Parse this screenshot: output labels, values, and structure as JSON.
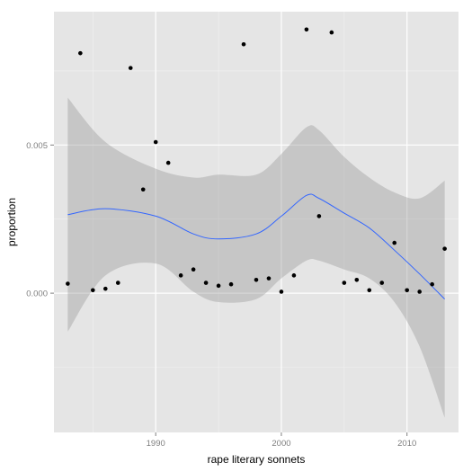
{
  "chart_data": {
    "type": "scatter",
    "title": "",
    "xlabel": "rape literary sonnets",
    "ylabel": "proportion",
    "xlim": [
      1981.9,
      2014.1
    ],
    "ylim": [
      -0.0047,
      0.0095
    ],
    "x_ticks": [
      1990,
      2000,
      2010
    ],
    "x_tick_labels": [
      "1990",
      "2000",
      "2010"
    ],
    "y_ticks": [
      0.0,
      0.005
    ],
    "y_tick_labels": [
      "0.000",
      "0.005"
    ],
    "grid": true,
    "legend": "none",
    "points": [
      {
        "x": 1983,
        "y": 0.00032
      },
      {
        "x": 1984,
        "y": 0.0081
      },
      {
        "x": 1985,
        "y": 0.0001
      },
      {
        "x": 1986,
        "y": 0.00015
      },
      {
        "x": 1987,
        "y": 0.00035
      },
      {
        "x": 1988,
        "y": 0.0076
      },
      {
        "x": 1989,
        "y": 0.0035
      },
      {
        "x": 1990,
        "y": 0.0051
      },
      {
        "x": 1991,
        "y": 0.0044
      },
      {
        "x": 1992,
        "y": 0.0006
      },
      {
        "x": 1993,
        "y": 0.0008
      },
      {
        "x": 1994,
        "y": 0.00035
      },
      {
        "x": 1995,
        "y": 0.00025
      },
      {
        "x": 1996,
        "y": 0.0003
      },
      {
        "x": 1997,
        "y": 0.0084
      },
      {
        "x": 1998,
        "y": 0.00045
      },
      {
        "x": 1999,
        "y": 0.0005
      },
      {
        "x": 2000,
        "y": 5e-05
      },
      {
        "x": 2001,
        "y": 0.0006
      },
      {
        "x": 2002,
        "y": 0.0089
      },
      {
        "x": 2003,
        "y": 0.0026
      },
      {
        "x": 2004,
        "y": 0.0088
      },
      {
        "x": 2005,
        "y": 0.00035
      },
      {
        "x": 2006,
        "y": 0.00045
      },
      {
        "x": 2007,
        "y": 0.0001
      },
      {
        "x": 2008,
        "y": 0.00035
      },
      {
        "x": 2009,
        "y": 0.0017
      },
      {
        "x": 2010,
        "y": 0.0001
      },
      {
        "x": 2011,
        "y": 5e-05
      },
      {
        "x": 2012,
        "y": 0.0003
      },
      {
        "x": 2013,
        "y": 0.0015
      }
    ],
    "smooth": {
      "method": "loess",
      "line_color": "#3366ff",
      "band_color": "#999999",
      "x": [
        1983,
        1986,
        1990,
        1993,
        1995,
        1998,
        2000,
        2002,
        2003,
        2005,
        2007,
        2009,
        2011,
        2013
      ],
      "y": [
        0.00265,
        0.00285,
        0.0026,
        0.002,
        0.00183,
        0.002,
        0.0026,
        0.0033,
        0.0032,
        0.0027,
        0.0022,
        0.00145,
        0.00065,
        -0.0002
      ],
      "upper": [
        0.0066,
        0.0051,
        0.0042,
        0.0039,
        0.004,
        0.004,
        0.0047,
        0.0056,
        0.0055,
        0.0046,
        0.0039,
        0.0034,
        0.0032,
        0.0038
      ],
      "lower": [
        -0.0013,
        0.0006,
        0.001,
        5e-05,
        -0.0003,
        -0.0002,
        0.0005,
        0.0011,
        0.0011,
        0.0008,
        0.0005,
        -0.0003,
        -0.0018,
        -0.0042
      ]
    },
    "colors": {
      "panel_bg": "#e5e5e5",
      "grid_major": "#ffffff",
      "grid_minor": "#f2f2f2",
      "point": "#000000"
    }
  }
}
